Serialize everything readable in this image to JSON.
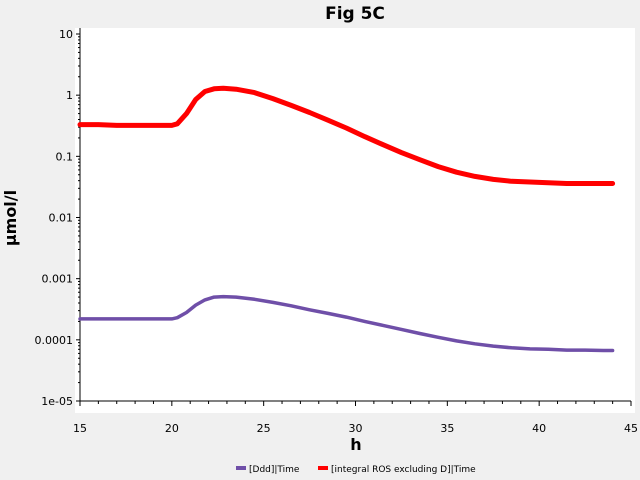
{
  "chart_data": {
    "type": "line",
    "title": "Fig 5C",
    "xlabel": "h",
    "ylabel": "µmol/l",
    "xlim": [
      15,
      45
    ],
    "ylim": [
      1e-05,
      10
    ],
    "yscale": "log",
    "xticks": [
      15,
      20,
      25,
      30,
      35,
      40,
      45
    ],
    "xtick_labels": [
      "15",
      "20",
      "25",
      "30",
      "35",
      "40",
      "45"
    ],
    "yticks": [
      1e-05,
      0.0001,
      0.001,
      0.01,
      0.1,
      1,
      10
    ],
    "ytick_labels": [
      "1e-05",
      "0.0001",
      "0.001",
      "0.01",
      "0.1",
      "1",
      "10"
    ],
    "grid": false,
    "legend_position": "bottom",
    "series": [
      {
        "name": "[Ddd]|Time",
        "color": "#6f4fa8",
        "x": [
          15,
          16,
          17,
          18,
          19,
          20,
          20.3,
          20.8,
          21.3,
          21.8,
          22.3,
          22.8,
          23.5,
          24.5,
          25.5,
          26.5,
          27.5,
          28.5,
          29.5,
          30.5,
          31.5,
          32.5,
          33.5,
          34.5,
          35.5,
          36.5,
          37.5,
          38.5,
          39.5,
          40.5,
          41.5,
          42.5,
          43.5,
          44
        ],
        "y": [
          0.00022,
          0.00022,
          0.00022,
          0.00022,
          0.00022,
          0.00022,
          0.00023,
          0.00028,
          0.00037,
          0.00045,
          0.0005,
          0.00051,
          0.0005,
          0.00046,
          0.00041,
          0.00036,
          0.00031,
          0.00027,
          0.000235,
          0.0002,
          0.000172,
          0.000148,
          0.000127,
          0.00011,
          9.6e-05,
          8.6e-05,
          7.9e-05,
          7.4e-05,
          7.1e-05,
          7e-05,
          6.8e-05,
          6.8e-05,
          6.7e-05,
          6.7e-05
        ]
      },
      {
        "name": "[integral ROS excluding D]|Time",
        "color": "#ff0000",
        "x": [
          15,
          16,
          17,
          18,
          19,
          20,
          20.3,
          20.8,
          21.3,
          21.8,
          22.3,
          22.8,
          23.5,
          24.5,
          25.5,
          26.5,
          27.5,
          28.5,
          29.5,
          30.5,
          31.5,
          32.5,
          33.5,
          34.5,
          35.5,
          36.5,
          37.5,
          38.5,
          39.5,
          40.5,
          41.5,
          42.5,
          43.5,
          44
        ],
        "y": [
          0.33,
          0.33,
          0.32,
          0.32,
          0.32,
          0.32,
          0.34,
          0.5,
          0.85,
          1.15,
          1.27,
          1.3,
          1.25,
          1.1,
          0.88,
          0.68,
          0.52,
          0.39,
          0.29,
          0.21,
          0.155,
          0.115,
          0.088,
          0.068,
          0.055,
          0.047,
          0.042,
          0.039,
          0.038,
          0.037,
          0.036,
          0.036,
          0.036,
          0.036
        ]
      }
    ]
  }
}
